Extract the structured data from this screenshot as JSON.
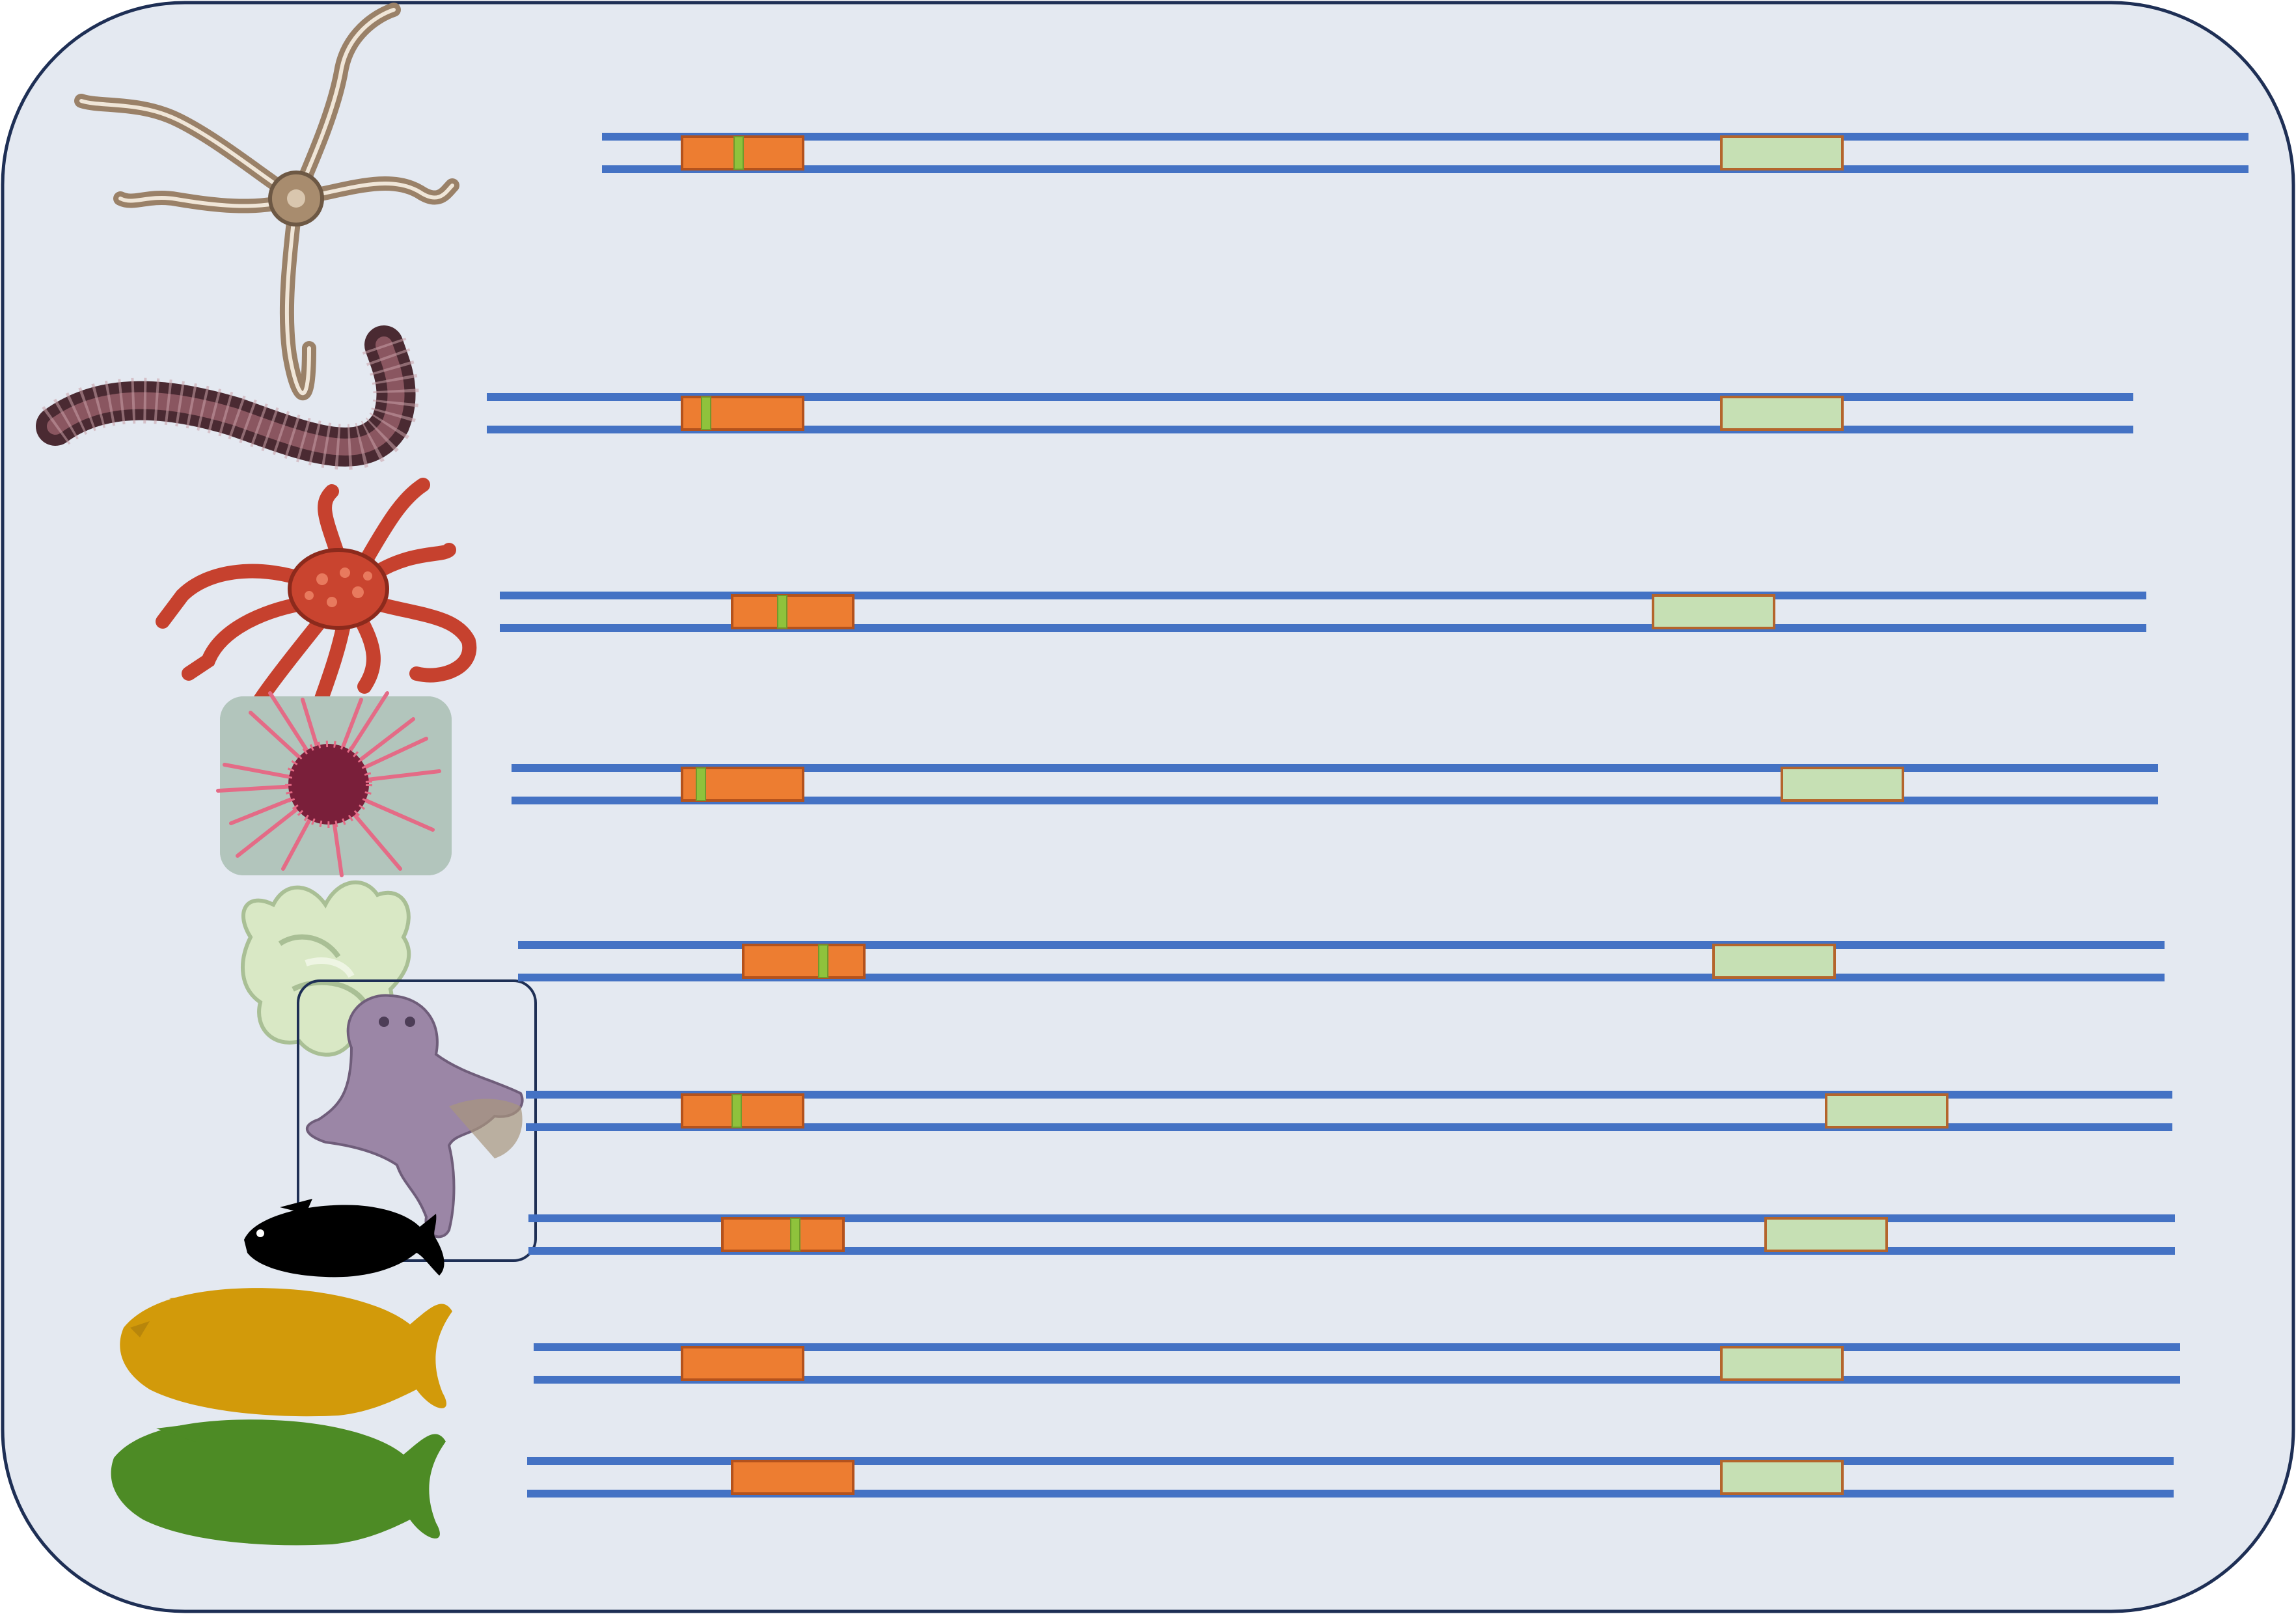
{
  "colors": {
    "panel_fill": "#e4e9f1",
    "panel_stroke": "#1e2f55",
    "strand": "#4472c4",
    "orange_box_fill": "#ed7d31",
    "orange_box_stroke": "#b4521c",
    "green_marker": "#8fc23c",
    "light_green_box_fill": "#c6e0b4",
    "light_green_box_stroke": "#b4652c",
    "inset_frame_stroke": "#1e2f55"
  },
  "rows": [
    {
      "organism": "brittle-star",
      "icon": "brittle-star-icon",
      "has_marker": true
    },
    {
      "organism": "polychaete-worm",
      "icon": "worm-icon",
      "has_marker": true
    },
    {
      "organism": "spider-crab",
      "icon": "crab-icon",
      "has_marker": true
    },
    {
      "organism": "sea-urchin",
      "icon": "sea-urchin-icon",
      "has_marker": true
    },
    {
      "organism": "sponge",
      "icon": "sponge-icon",
      "has_marker": true
    },
    {
      "organism": "octopus",
      "icon": "octopus-icon",
      "has_marker": true
    },
    {
      "organism": "black-fish",
      "icon": "black-fish-icon",
      "has_marker": true
    },
    {
      "organism": "orange-fish",
      "icon": "orange-fish-icon",
      "has_marker": false
    },
    {
      "organism": "green-fish",
      "icon": "green-fish-icon",
      "has_marker": false
    }
  ]
}
